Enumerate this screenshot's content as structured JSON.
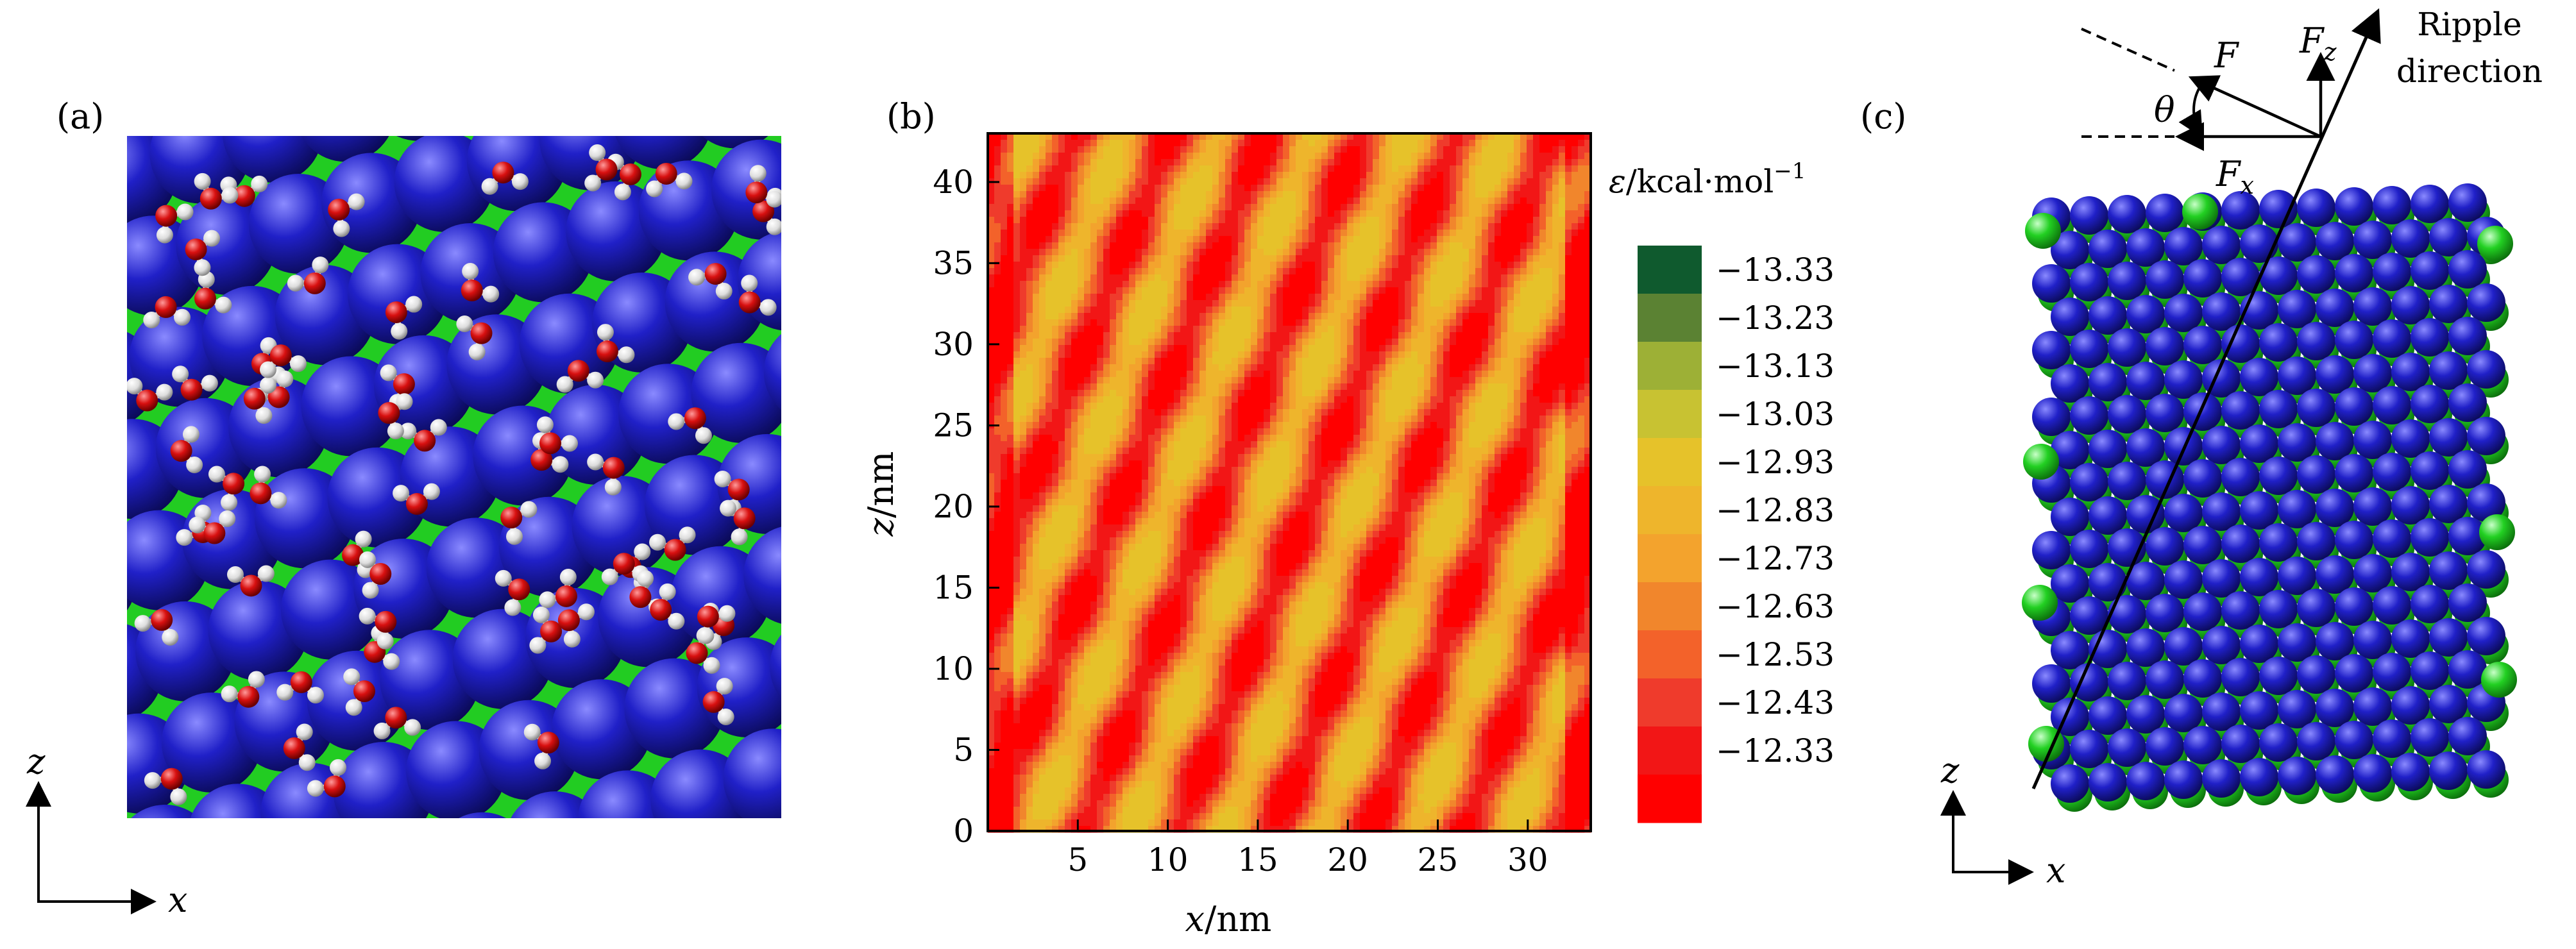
{
  "panels": {
    "a": {
      "label": "(a)",
      "axis_z": "z",
      "axis_x": "x"
    },
    "b": {
      "label": "(b)"
    },
    "c": {
      "label": "(c)",
      "axis_z": "z",
      "axis_x": "x",
      "force_F": "F",
      "force_Fz": "F",
      "force_Fz_sub": "z",
      "force_Fx": "F",
      "force_Fx_sub": "x",
      "angle": "θ",
      "ripple_line1": "Ripple",
      "ripple_line2": "direction"
    }
  },
  "colors": {
    "atom_blue": "#1f1fc8",
    "atom_green": "#22d022",
    "oxygen_red": "#d81010",
    "hydrogen_white": "#eeeeee"
  },
  "chart_data": {
    "type": "heatmap",
    "xlabel_var": "x",
    "xlabel_unit": "/nm",
    "ylabel_var": "z",
    "ylabel_unit": "/nm",
    "xlim": [
      0,
      33.5
    ],
    "ylim": [
      0,
      43
    ],
    "xticks": [
      5,
      10,
      15,
      20,
      25,
      30
    ],
    "yticks": [
      0,
      5,
      10,
      15,
      20,
      25,
      30,
      35,
      40
    ],
    "colorbar": {
      "title_var": "ε",
      "title_unit": "/kcal·mol",
      "title_exp": "−1",
      "levels": [
        "−13.33",
        "−13.23",
        "−13.13",
        "−13.03",
        "−12.93",
        "−12.83",
        "−12.73",
        "−12.63",
        "−12.53",
        "−12.43",
        "−12.33"
      ],
      "colors": [
        "#0f5a2e",
        "#5b8233",
        "#9db036",
        "#c8c232",
        "#e6c22a",
        "#eeb52c",
        "#f3a32d",
        "#f1862c",
        "#f3622a",
        "#ef3b2c",
        "#f21616",
        "#ff0000"
      ]
    }
  }
}
